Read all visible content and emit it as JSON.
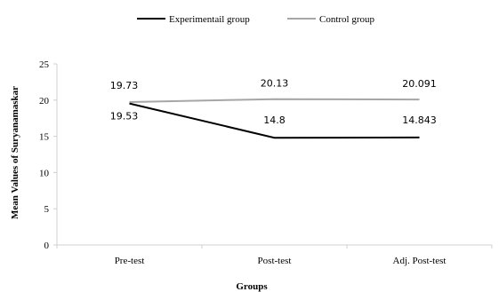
{
  "chart_data": {
    "type": "line",
    "title": "",
    "xlabel": "Groups",
    "ylabel": "Mean Values of Suryanamaskar",
    "categories": [
      "Pre-test",
      "Post-test",
      "Adj. Post-test"
    ],
    "ylim": [
      0,
      25
    ],
    "yticks": [
      "0",
      "5",
      "10",
      "15",
      "20",
      "25"
    ],
    "grid": false,
    "legend": "top",
    "series": [
      {
        "name": "Experimentail group",
        "color": "#000000",
        "values": [
          19.53,
          14.8,
          14.843
        ],
        "labels": [
          "19.53",
          "14.8",
          "14.843"
        ]
      },
      {
        "name": "Control group",
        "color": "#a6a6a6",
        "values": [
          19.73,
          20.13,
          20.091
        ],
        "labels": [
          "19.73",
          "20.13",
          "20.091"
        ]
      }
    ]
  }
}
